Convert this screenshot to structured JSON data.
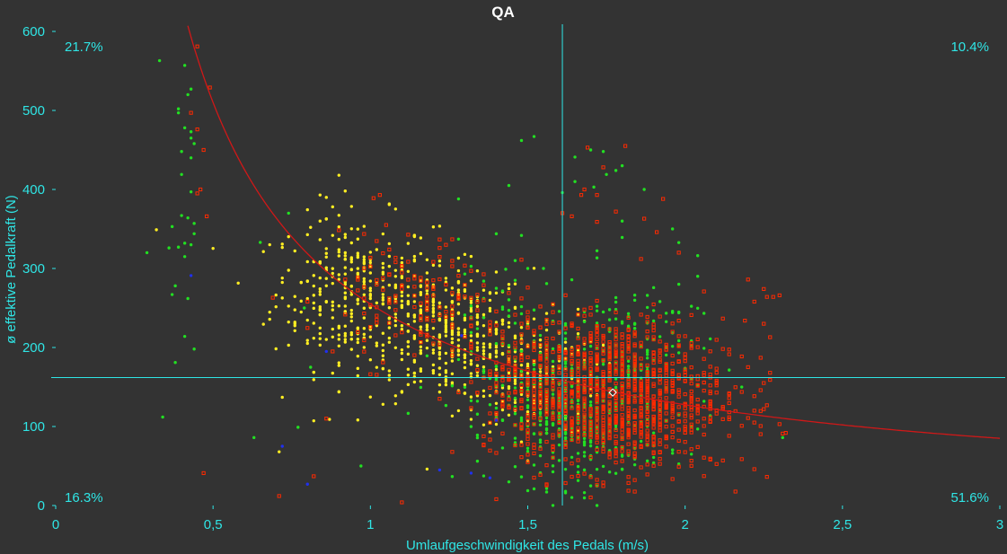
{
  "chart_data": {
    "type": "scatter",
    "title": "QA",
    "xlabel": "Umlaufgeschwindigkeit des Pedals (m/s)",
    "ylabel": "ø effektive Pedalkraft (N)",
    "xlim": [
      0,
      3
    ],
    "ylim": [
      0,
      600
    ],
    "x_ticks": [
      "0",
      "0,5",
      "1",
      "1,5",
      "2",
      "2,5",
      "3"
    ],
    "y_ticks": [
      "0",
      "100",
      "200",
      "300",
      "400",
      "500",
      "600"
    ],
    "reference_lines": {
      "x": 1.61,
      "y": 162
    },
    "quadrant_percentages": {
      "top_left": "21.7%",
      "top_right": "10.4%",
      "bottom_left": "16.3%",
      "bottom_right": "51.6%"
    },
    "curve": {
      "type": "hyperbola",
      "constant": 255,
      "color": "#d01818"
    },
    "mean_marker": {
      "x": 1.77,
      "y": 143,
      "color": "#ffffff"
    },
    "series": [
      {
        "color": "#ffee22",
        "marker": "dot",
        "clusters": [
          {
            "cx": 0.95,
            "cy": 270,
            "sx": 0.13,
            "sy": 48,
            "n": 300
          },
          {
            "cx": 1.25,
            "cy": 215,
            "sx": 0.13,
            "sy": 42,
            "n": 340
          },
          {
            "cx": 1.52,
            "cy": 165,
            "sx": 0.1,
            "sy": 38,
            "n": 200
          }
        ],
        "points": [
          [
            0.9,
            418
          ],
          [
            0.92,
            398
          ],
          [
            0.84,
            393
          ],
          [
            0.88,
            378
          ],
          [
            0.84,
            360
          ],
          [
            0.81,
            352
          ],
          [
            0.32,
            349
          ],
          [
            0.72,
            137
          ],
          [
            0.71,
            68
          ],
          [
            0.87,
            109
          ]
        ]
      },
      {
        "color": "#22e022",
        "marker": "dot",
        "clusters": [
          {
            "cx": 1.65,
            "cy": 110,
            "sx": 0.14,
            "sy": 42,
            "n": 340
          },
          {
            "cx": 1.85,
            "cy": 190,
            "sx": 0.12,
            "sy": 55,
            "n": 140
          },
          {
            "cx": 1.45,
            "cy": 200,
            "sx": 0.12,
            "sy": 55,
            "n": 80
          }
        ],
        "points": [
          [
            0.33,
            563
          ],
          [
            0.41,
            557
          ],
          [
            0.43,
            527
          ],
          [
            0.42,
            520
          ],
          [
            0.39,
            502
          ],
          [
            0.39,
            497
          ],
          [
            0.41,
            478
          ],
          [
            0.43,
            473
          ],
          [
            0.43,
            465
          ],
          [
            0.44,
            458
          ],
          [
            0.4,
            448
          ],
          [
            0.43,
            440
          ],
          [
            0.4,
            419
          ],
          [
            0.43,
            397
          ],
          [
            0.4,
            367
          ],
          [
            0.42,
            364
          ],
          [
            0.44,
            357
          ],
          [
            0.37,
            353
          ],
          [
            0.41,
            332
          ],
          [
            0.43,
            330
          ],
          [
            0.39,
            327
          ],
          [
            0.41,
            315
          ],
          [
            0.36,
            326
          ],
          [
            0.44,
            344
          ],
          [
            0.38,
            278
          ],
          [
            0.37,
            267
          ],
          [
            0.42,
            262
          ],
          [
            0.41,
            214
          ],
          [
            0.44,
            198
          ],
          [
            0.38,
            181
          ],
          [
            0.34,
            112
          ],
          [
            0.29,
            320
          ],
          [
            0.65,
            333
          ],
          [
            0.74,
            370
          ],
          [
            1.52,
            467
          ],
          [
            1.48,
            462
          ],
          [
            1.7,
            450
          ],
          [
            1.74,
            448
          ],
          [
            1.8,
            430
          ],
          [
            1.78,
            424
          ],
          [
            1.65,
            410
          ],
          [
            1.71,
            403
          ],
          [
            1.44,
            405
          ],
          [
            1.61,
            396
          ],
          [
            1.28,
            388
          ],
          [
            1.87,
            400
          ],
          [
            1.65,
            441
          ],
          [
            1.75,
            419
          ],
          [
            1.5,
            300
          ],
          [
            1.46,
            310
          ],
          [
            1.55,
            300
          ],
          [
            1.43,
            299
          ],
          [
            1.8,
            360
          ],
          [
            0.63,
            86
          ],
          [
            0.77,
            99
          ],
          [
            0.81,
            175
          ],
          [
            0.79,
            250
          ],
          [
            0.97,
            50
          ],
          [
            1.62,
            16
          ],
          [
            2.31,
            86
          ]
        ]
      },
      {
        "color": "#ff2a00",
        "marker": "square",
        "clusters": [
          {
            "cx": 1.8,
            "cy": 140,
            "sx": 0.16,
            "sy": 48,
            "n": 1000
          },
          {
            "cx": 1.55,
            "cy": 165,
            "sx": 0.12,
            "sy": 45,
            "n": 250
          },
          {
            "cx": 1.15,
            "cy": 260,
            "sx": 0.12,
            "sy": 40,
            "n": 130
          }
        ],
        "points": [
          [
            0.45,
            581
          ],
          [
            0.49,
            529
          ],
          [
            0.43,
            497
          ],
          [
            0.45,
            476
          ],
          [
            0.47,
            450
          ],
          [
            0.46,
            400
          ],
          [
            0.45,
            395
          ],
          [
            0.48,
            366
          ],
          [
            0.69,
            263
          ],
          [
            0.8,
            258
          ],
          [
            0.88,
            195
          ],
          [
            0.86,
            110
          ],
          [
            0.82,
            37
          ],
          [
            0.71,
            12
          ],
          [
            0.47,
            41
          ],
          [
            1.69,
            453
          ],
          [
            1.81,
            455
          ],
          [
            1.74,
            428
          ],
          [
            1.68,
            400
          ],
          [
            1.67,
            393
          ],
          [
            1.72,
            393
          ],
          [
            1.93,
            388
          ],
          [
            1.78,
            372
          ],
          [
            1.87,
            363
          ],
          [
            1.72,
            359
          ],
          [
            1.91,
            346
          ],
          [
            1.98,
            320
          ],
          [
            1.61,
            370
          ],
          [
            1.64,
            366
          ],
          [
            1.03,
            393
          ],
          [
            1.01,
            389
          ],
          [
            1.05,
            355
          ],
          [
            2.2,
            286
          ],
          [
            2.25,
            274
          ],
          [
            2.28,
            264
          ],
          [
            2.26,
            264
          ],
          [
            2.3,
            266
          ],
          [
            2.22,
            258
          ],
          [
            2.19,
            234
          ],
          [
            2.25,
            230
          ],
          [
            2.27,
            213
          ],
          [
            2.24,
            187
          ],
          [
            2.27,
            168
          ],
          [
            2.27,
            159
          ],
          [
            2.25,
            155
          ],
          [
            2.24,
            146
          ],
          [
            2.25,
            122
          ],
          [
            2.22,
            105
          ],
          [
            2.3,
            103
          ],
          [
            2.31,
            91
          ],
          [
            2.12,
            57
          ],
          [
            2.22,
            46
          ],
          [
            1.4,
            8
          ],
          [
            1.1,
            4
          ]
        ]
      },
      {
        "color": "#2030ee",
        "marker": "dot",
        "points": [
          [
            0.43,
            291
          ],
          [
            0.86,
            195
          ],
          [
            0.8,
            27
          ],
          [
            0.72,
            75
          ],
          [
            1.22,
            45
          ],
          [
            1.32,
            41
          ],
          [
            1.29,
            215
          ],
          [
            1.38,
            35
          ],
          [
            1.4,
            108
          ]
        ]
      }
    ]
  }
}
